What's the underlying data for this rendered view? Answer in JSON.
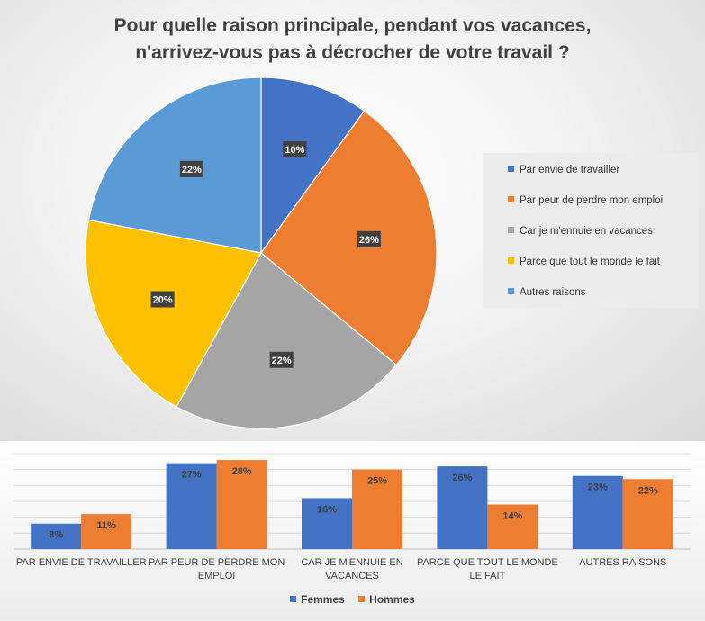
{
  "chart_data": [
    {
      "type": "pie",
      "title_lines": [
        "Pour quelle raison principale, pendant vos vacances,",
        "n'arrivez-vous pas à décrocher de votre travail ?"
      ],
      "categories": [
        "Par envie de travailler",
        "Par peur de perdre mon emploi",
        "Car je m'ennuie en vacances",
        "Parce que tout le monde le fait",
        "Autres raisons"
      ],
      "values": [
        10,
        26,
        22,
        20,
        22
      ],
      "labels": [
        "10%",
        "26%",
        "22%",
        "20%",
        "22%"
      ],
      "colors": [
        "#4472c4",
        "#ed7d31",
        "#a5a5a5",
        "#ffc000",
        "#5b9bd5"
      ],
      "legend_position": "right"
    },
    {
      "type": "bar",
      "categories": [
        [
          "PAR ENVIE DE TRAVAILLER"
        ],
        [
          "PAR PEUR DE PERDRE MON",
          "EMPLOI"
        ],
        [
          "CAR JE M'ENNUIE EN",
          "VACANCES"
        ],
        [
          "PARCE QUE TOUT LE MONDE",
          "LE FAIT"
        ],
        [
          "AUTRES RAISONS"
        ]
      ],
      "series": [
        {
          "name": "Femmes",
          "values": [
            8,
            27,
            16,
            26,
            23
          ],
          "labels": [
            "8%",
            "27%",
            "16%",
            "26%",
            "23%"
          ],
          "color": "#4472c4"
        },
        {
          "name": "Hommes",
          "values": [
            11,
            28,
            25,
            14,
            22
          ],
          "labels": [
            "11%",
            "28%",
            "25%",
            "14%",
            "22%"
          ],
          "color": "#ed7d31"
        }
      ],
      "ylim": [
        0,
        30
      ],
      "grid": true,
      "legend_position": "bottom"
    }
  ]
}
